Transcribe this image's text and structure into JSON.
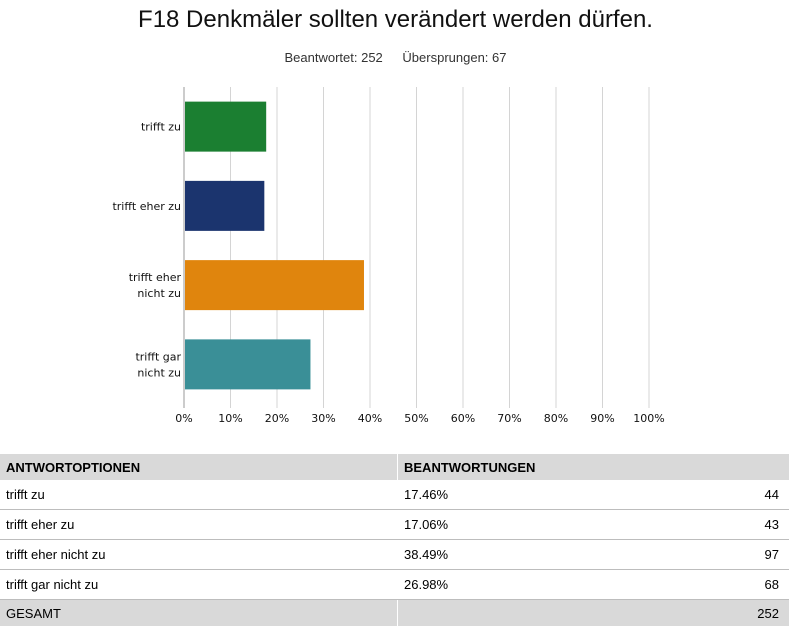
{
  "header": {
    "title": "F18 Denkmäler sollten verändert werden dürfen.",
    "answered": "Beantwortet: 252",
    "skipped": "Übersprungen: 67"
  },
  "chart_data": {
    "type": "bar",
    "orientation": "horizontal",
    "categories": [
      [
        "trifft zu"
      ],
      [
        "trifft eher zu"
      ],
      [
        "trifft eher",
        "nicht zu"
      ],
      [
        "trifft gar",
        "nicht zu"
      ]
    ],
    "values": [
      17.46,
      17.06,
      38.49,
      26.98
    ],
    "colors": [
      "#1b7f31",
      "#1b346e",
      "#e0850d",
      "#3a8f97"
    ],
    "xlim": [
      0,
      100
    ],
    "xticks": [
      "0%",
      "10%",
      "20%",
      "30%",
      "40%",
      "50%",
      "60%",
      "70%",
      "80%",
      "90%",
      "100%"
    ],
    "grid": true
  },
  "table": {
    "headers": [
      "ANTWORTOPTIONEN",
      "BEANTWORTUNGEN"
    ],
    "rows": [
      {
        "option": "trifft zu",
        "percent": "17.46%",
        "count": "44"
      },
      {
        "option": "trifft eher zu",
        "percent": "17.06%",
        "count": "43"
      },
      {
        "option": "trifft eher nicht zu",
        "percent": "38.49%",
        "count": "97"
      },
      {
        "option": "trifft gar nicht zu",
        "percent": "26.98%",
        "count": "68"
      }
    ],
    "total_label": "GESAMT",
    "total_count": "252"
  }
}
